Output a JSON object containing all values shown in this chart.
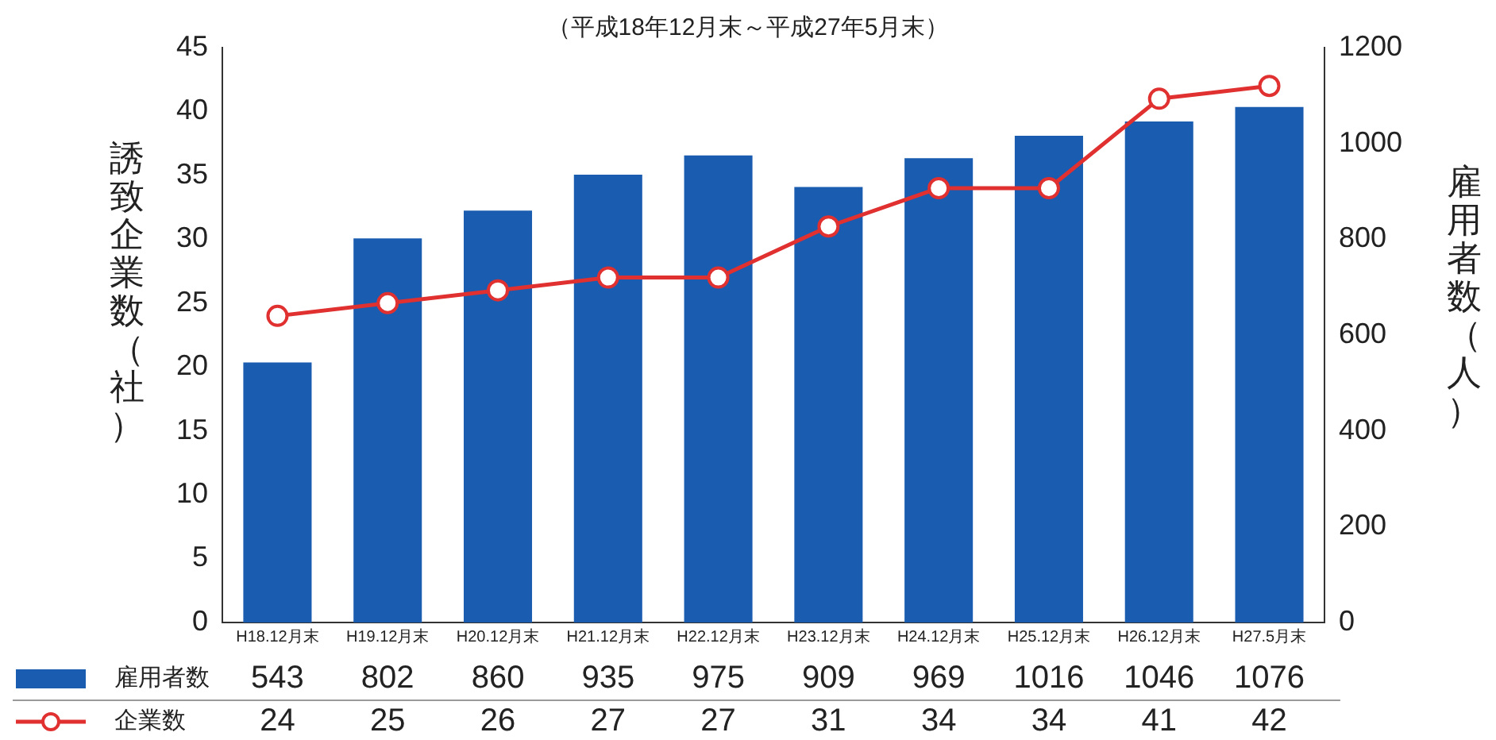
{
  "chart_data": {
    "type": "bar",
    "subtitle": "（平成18年12月末～平成27年5月末）",
    "ylabel": "誘致企業数（社）",
    "y2label": "雇用者数（人）",
    "categories": [
      "H18.12月末",
      "H19.12月末",
      "H20.12月末",
      "H21.12月末",
      "H22.12月末",
      "H23.12月末",
      "H24.12月末",
      "H25.12月末",
      "H26.12月末",
      "H27.5月末"
    ],
    "series": [
      {
        "name": "雇用者数",
        "axis": "y2",
        "color": "#1a5cb0",
        "values": [
          543,
          802,
          860,
          935,
          975,
          909,
          969,
          1016,
          1046,
          1076
        ]
      },
      {
        "name": "企業数",
        "type": "line",
        "axis": "y",
        "color": "#e03030",
        "marker": "circle",
        "values": [
          24,
          25,
          26,
          27,
          27,
          31,
          34,
          34,
          41,
          42
        ]
      }
    ],
    "ylim": [
      0,
      45
    ],
    "yticks": [
      0,
      5,
      10,
      15,
      20,
      25,
      30,
      35,
      40,
      45
    ],
    "y2lim": [
      0,
      1200
    ],
    "y2ticks": [
      0,
      200,
      400,
      600,
      800,
      1000,
      1200
    ],
    "data_labels": true,
    "legend": "bottom",
    "grid": false
  }
}
